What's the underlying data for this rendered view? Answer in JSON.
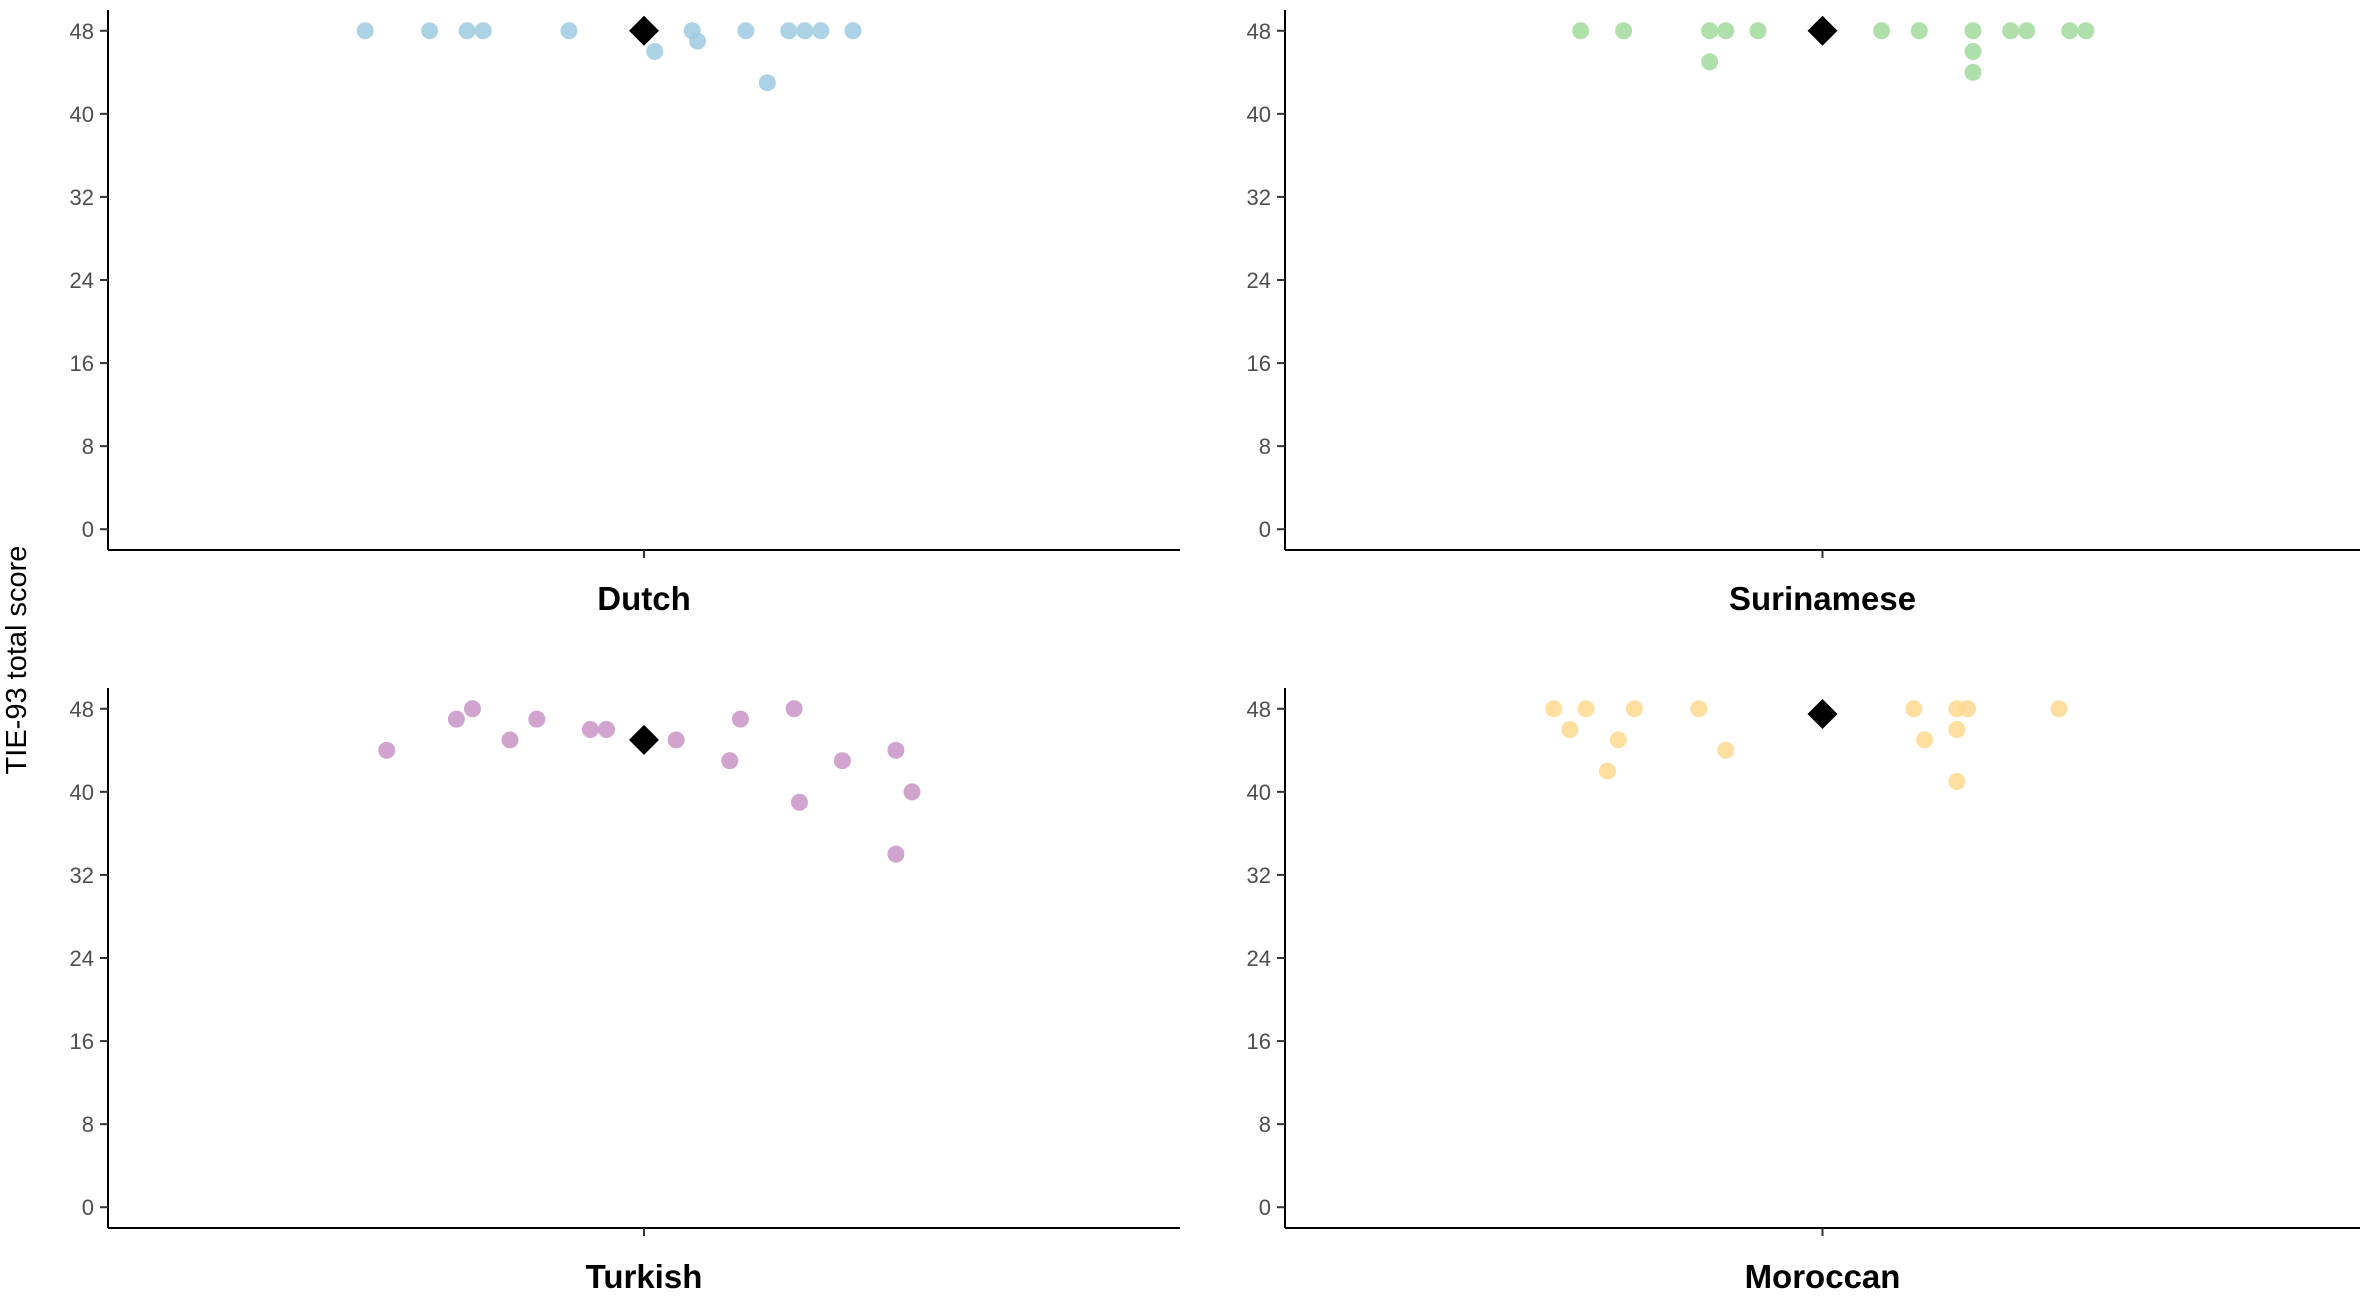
{
  "chart_data": {
    "type": "scatter",
    "ylabel": "TIE-93 total score",
    "ylim": [
      -2,
      50
    ],
    "yticks": [
      0,
      8,
      16,
      24,
      32,
      40,
      48
    ],
    "xlim": [
      -1,
      1
    ],
    "grid": false,
    "legend": "none",
    "panels": [
      {
        "name": "Dutch",
        "color": "#9ecae1",
        "mean": 48,
        "points": [
          {
            "x": -0.52,
            "y": 48
          },
          {
            "x": -0.4,
            "y": 48
          },
          {
            "x": -0.33,
            "y": 48
          },
          {
            "x": -0.3,
            "y": 48
          },
          {
            "x": -0.14,
            "y": 48
          },
          {
            "x": 0.09,
            "y": 48
          },
          {
            "x": 0.19,
            "y": 48
          },
          {
            "x": 0.27,
            "y": 48
          },
          {
            "x": 0.3,
            "y": 48
          },
          {
            "x": 0.33,
            "y": 48
          },
          {
            "x": 0.39,
            "y": 48
          },
          {
            "x": 0.02,
            "y": 46
          },
          {
            "x": 0.1,
            "y": 47
          },
          {
            "x": 0.23,
            "y": 43
          }
        ]
      },
      {
        "name": "Surinamese",
        "color": "#a1d99b",
        "mean": 48,
        "points": [
          {
            "x": -0.45,
            "y": 48
          },
          {
            "x": -0.37,
            "y": 48
          },
          {
            "x": -0.21,
            "y": 48
          },
          {
            "x": -0.18,
            "y": 48
          },
          {
            "x": -0.12,
            "y": 48
          },
          {
            "x": 0.11,
            "y": 48
          },
          {
            "x": 0.18,
            "y": 48
          },
          {
            "x": 0.28,
            "y": 48
          },
          {
            "x": 0.35,
            "y": 48
          },
          {
            "x": 0.38,
            "y": 48
          },
          {
            "x": 0.46,
            "y": 48
          },
          {
            "x": 0.49,
            "y": 48
          },
          {
            "x": -0.21,
            "y": 45
          },
          {
            "x": 0.28,
            "y": 46
          },
          {
            "x": 0.28,
            "y": 44
          }
        ]
      },
      {
        "name": "Turkish",
        "color": "#c994c7",
        "mean": 45,
        "points": [
          {
            "x": -0.48,
            "y": 44
          },
          {
            "x": -0.35,
            "y": 47
          },
          {
            "x": -0.32,
            "y": 48
          },
          {
            "x": -0.25,
            "y": 45
          },
          {
            "x": -0.2,
            "y": 47
          },
          {
            "x": -0.1,
            "y": 46
          },
          {
            "x": -0.07,
            "y": 46
          },
          {
            "x": 0.06,
            "y": 45
          },
          {
            "x": 0.16,
            "y": 43
          },
          {
            "x": 0.18,
            "y": 47
          },
          {
            "x": 0.28,
            "y": 48
          },
          {
            "x": 0.29,
            "y": 39
          },
          {
            "x": 0.37,
            "y": 43
          },
          {
            "x": 0.47,
            "y": 44
          },
          {
            "x": 0.5,
            "y": 40
          },
          {
            "x": 0.47,
            "y": 34
          }
        ]
      },
      {
        "name": "Moroccan",
        "color": "#fed98e",
        "mean": 47.5,
        "points": [
          {
            "x": -0.5,
            "y": 48
          },
          {
            "x": -0.44,
            "y": 48
          },
          {
            "x": -0.35,
            "y": 48
          },
          {
            "x": -0.23,
            "y": 48
          },
          {
            "x": 0.17,
            "y": 48
          },
          {
            "x": 0.25,
            "y": 48
          },
          {
            "x": 0.27,
            "y": 48
          },
          {
            "x": 0.44,
            "y": 48
          },
          {
            "x": -0.47,
            "y": 46
          },
          {
            "x": -0.38,
            "y": 45
          },
          {
            "x": -0.4,
            "y": 42
          },
          {
            "x": -0.18,
            "y": 44
          },
          {
            "x": 0.19,
            "y": 45
          },
          {
            "x": 0.25,
            "y": 46
          },
          {
            "x": 0.25,
            "y": 41
          }
        ]
      }
    ]
  }
}
